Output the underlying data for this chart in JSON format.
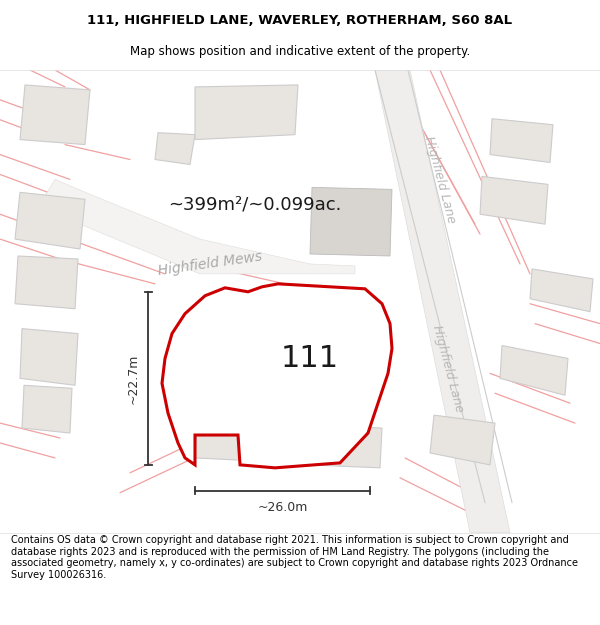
{
  "title_line1": "111, HIGHFIELD LANE, WAVERLEY, ROTHERHAM, S60 8AL",
  "title_line2": "Map shows position and indicative extent of the property.",
  "footer_text": "Contains OS data © Crown copyright and database right 2021. This information is subject to Crown copyright and database rights 2023 and is reproduced with the permission of HM Land Registry. The polygons (including the associated geometry, namely x, y co-ordinates) are subject to Crown copyright and database rights 2023 Ordnance Survey 100026316.",
  "area_label": "~399m²/~0.099ac.",
  "street_label_mews": "Highfield Mews",
  "street_label_top": "Highfield Lane",
  "street_label_bottom": "Highfield Lane",
  "property_number": "111",
  "dim_horizontal": "~26.0m",
  "dim_vertical": "~22.7m",
  "bg_color": "#ffffff",
  "building_fill": "#e8e4e0",
  "building_edge": "#cccccc",
  "road_line_color": "#f0a0a0",
  "road_label_color": "#b0b0b0",
  "plot_fill": "#ffffff",
  "plot_edge": "#cc0000",
  "meas_color": "#333333",
  "title_fontsize": 9.5,
  "subtitle_fontsize": 8.5,
  "footer_fontsize": 7.0,
  "number_fontsize": 22,
  "area_fontsize": 13,
  "mews_fontsize": 10,
  "lane_fontsize": 9
}
